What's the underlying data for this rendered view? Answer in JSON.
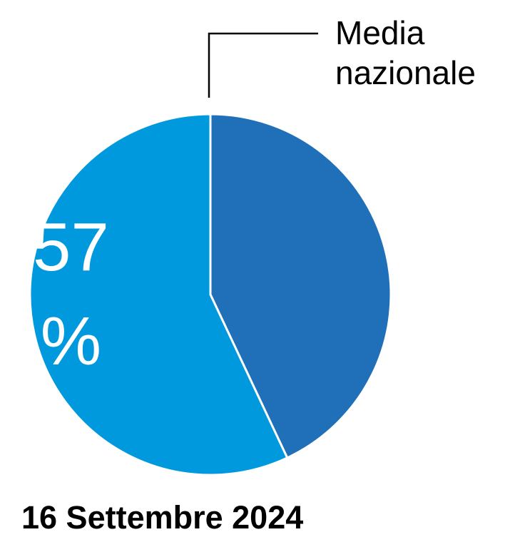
{
  "chart_data": {
    "type": "pie",
    "title": "16 Settembre 2024",
    "annotation": "Media nazionale",
    "values": [
      43,
      57
    ],
    "value_labels": [
      null,
      "57 %"
    ],
    "colors": [
      "#1f70b9",
      "#0099de"
    ]
  }
}
